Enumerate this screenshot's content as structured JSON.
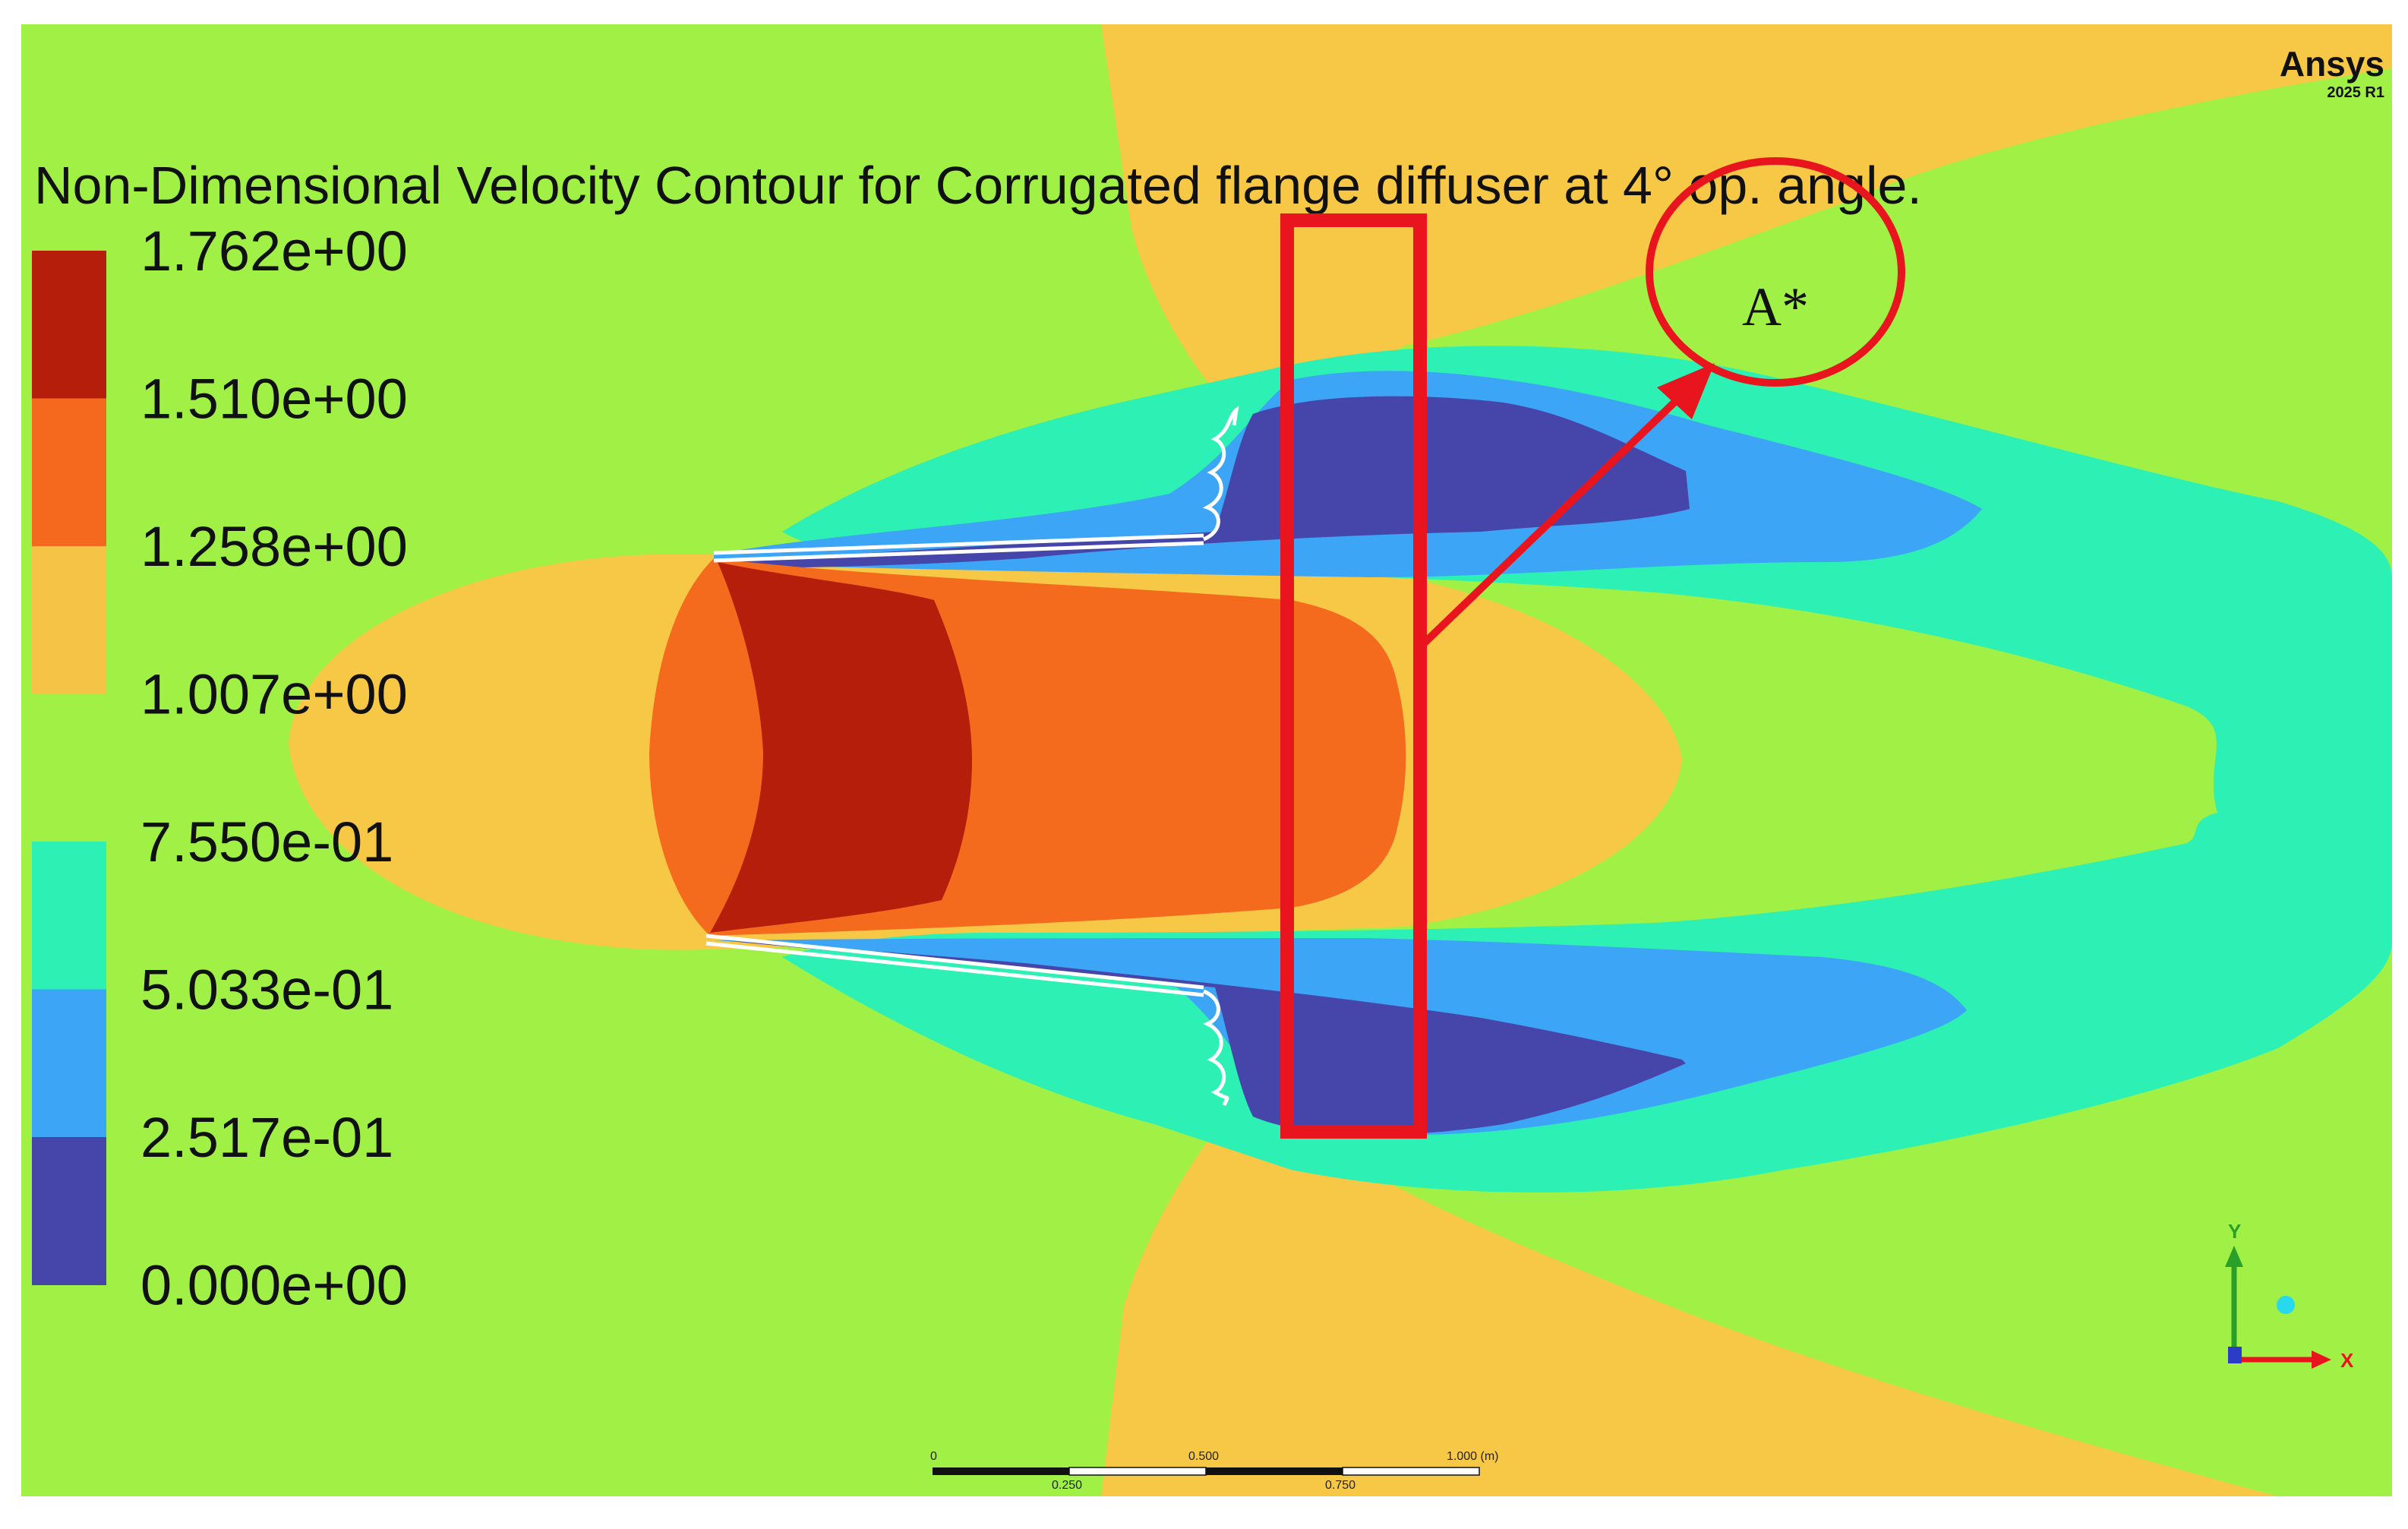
{
  "title": "Non-Dimensional Velocity Contour for Corrugated flange diffuser at 4° op. angle.",
  "branding": {
    "name": "Ansys",
    "version": "2025 R1"
  },
  "legend": {
    "labels": [
      "1.762e+00",
      "1.510e+00",
      "1.258e+00",
      "1.007e+00",
      "7.550e-01",
      "5.033e-01",
      "2.517e-01",
      "0.000e+00"
    ],
    "band_colors": [
      "#b41e0a",
      "#f5691e",
      "#f5c346",
      "#a0f046",
      "#2df0b4",
      "#3ca5f5",
      "#4646aa"
    ]
  },
  "contour_colors": {
    "background": "#a0f046",
    "yellow": "#f7c845",
    "orange": "#f56b1e",
    "red": "#b41e0a",
    "cyan": "#2df0b4",
    "light_blue": "#3ca5f5",
    "dark_blue": "#4646aa",
    "highlight": "#e8141e"
  },
  "annotation": {
    "label": "A*"
  },
  "scale_bar": {
    "top_labels": [
      "0",
      "0.500",
      "1.000 (m)"
    ],
    "bottom_labels": [
      "0.250",
      "0.750"
    ]
  },
  "axes": {
    "y_label": "Y",
    "x_label": "X",
    "y_color": "#2aa02a",
    "x_color": "#e8141e",
    "z_color": "#2c8cdc"
  }
}
